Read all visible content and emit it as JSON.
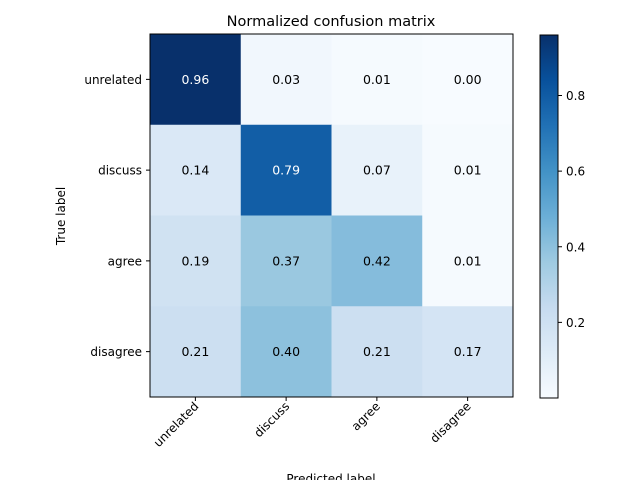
{
  "chart_data": {
    "type": "heatmap",
    "title": "Normalized confusion matrix",
    "xlabel": "Predicted label",
    "ylabel": "True label",
    "x_categories": [
      "unrelated",
      "discuss",
      "agree",
      "disagree"
    ],
    "y_categories": [
      "unrelated",
      "discuss",
      "agree",
      "disagree"
    ],
    "values": [
      [
        0.96,
        0.03,
        0.01,
        0.0
      ],
      [
        0.14,
        0.79,
        0.07,
        0.01
      ],
      [
        0.19,
        0.37,
        0.42,
        0.01
      ],
      [
        0.21,
        0.4,
        0.21,
        0.17
      ]
    ],
    "value_labels": [
      [
        "0.96",
        "0.03",
        "0.01",
        "0.00"
      ],
      [
        "0.14",
        "0.79",
        "0.07",
        "0.01"
      ],
      [
        "0.19",
        "0.37",
        "0.42",
        "0.01"
      ],
      [
        "0.21",
        "0.40",
        "0.21",
        "0.17"
      ]
    ],
    "colormap": "Blues",
    "colorbar": {
      "range": [
        0.0,
        0.96
      ],
      "ticks": [
        0.2,
        0.4,
        0.6,
        0.8
      ],
      "tick_labels": [
        "0.2",
        "0.4",
        "0.6",
        "0.8"
      ]
    },
    "grid": false
  }
}
